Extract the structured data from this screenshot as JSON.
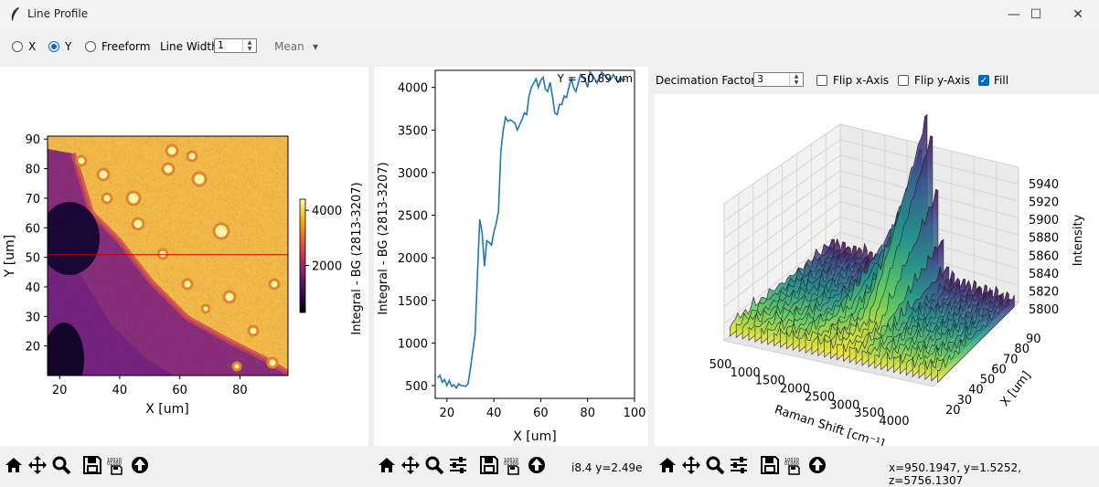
{
  "window": {
    "title": "Line Profile",
    "minimize": "—",
    "maximize": "☐",
    "close": "✕"
  },
  "toolbar": {
    "radios": [
      {
        "label": "X",
        "selected": false
      },
      {
        "label": "Y",
        "selected": true
      },
      {
        "label": "Freeform",
        "selected": false
      }
    ],
    "line_width_label": "Line Width",
    "line_width_value": "1",
    "mode_value": "Mean",
    "mode_arrow": "▾"
  },
  "panel3_controls": {
    "decimation_label": "Decimation Factor",
    "decimation_value": "3",
    "flip_x": {
      "label": "Flip x-Axis",
      "checked": false
    },
    "flip_y": {
      "label": "Flip y-Axis",
      "checked": false
    },
    "fill": {
      "label": "Fill",
      "checked": true
    }
  },
  "status": {
    "panel2_coords": "i8.4 y=2.49e",
    "panel3_coords": "x=950.1947, y=1.5252, z=5756.1307"
  },
  "chart_data": [
    {
      "type": "heatmap",
      "xlabel": "X [um]",
      "ylabel": "Y [um]",
      "xticks": [
        "20",
        "40",
        "60",
        "80"
      ],
      "yticks": [
        "20",
        "30",
        "40",
        "50",
        "60",
        "70",
        "80",
        "90"
      ],
      "xlim": [
        16,
        96
      ],
      "ylim": [
        10,
        91
      ],
      "colorbar_label": "Integral - BG (2813-3207)",
      "colorbar_ticks": [
        "2000",
        "4000"
      ],
      "colorbar_range": [
        300,
        4400
      ],
      "line_y": 50.89
    },
    {
      "type": "line",
      "title": "Y = 50.89 um",
      "xlabel": "X [um]",
      "ylabel": "Integral - BG (2813-3207)",
      "xticks": [
        "20",
        "40",
        "60",
        "80",
        "100"
      ],
      "yticks": [
        "500",
        "1000",
        "1500",
        "2000",
        "2500",
        "3000",
        "3500",
        "4000"
      ],
      "xlim": [
        15,
        100
      ],
      "ylim": [
        350,
        4200
      ],
      "series": [
        {
          "color": "#1f77b4",
          "x": [
            16,
            17,
            18,
            19,
            20,
            21,
            22,
            23,
            24,
            25,
            26,
            27,
            28,
            29,
            30,
            31,
            32,
            33,
            34,
            35,
            36,
            37,
            38,
            39,
            40,
            41,
            42,
            43,
            44,
            45,
            46,
            47,
            48,
            49,
            50,
            51,
            52,
            53,
            54,
            55,
            56,
            57,
            58,
            59,
            60,
            61,
            62,
            63,
            64,
            65,
            66,
            67,
            68,
            69,
            70,
            71,
            72,
            73,
            74,
            75,
            76,
            77,
            78,
            79,
            80,
            81,
            82,
            83,
            84,
            85,
            86,
            87,
            88,
            89,
            90,
            91,
            92,
            93,
            94,
            95,
            96
          ],
          "y": [
            590,
            620,
            540,
            570,
            500,
            560,
            490,
            510,
            470,
            520,
            500,
            500,
            490,
            520,
            700,
            900,
            1100,
            1800,
            2450,
            2300,
            1900,
            2200,
            2180,
            2150,
            2300,
            2400,
            2550,
            3250,
            3500,
            3650,
            3600,
            3620,
            3600,
            3580,
            3500,
            3560,
            3620,
            3700,
            3680,
            3900,
            4000,
            4050,
            4100,
            4000,
            4080,
            4120,
            3980,
            3950,
            4060,
            3900,
            3700,
            3680,
            3800,
            3800,
            3900,
            3880,
            4000,
            4100,
            4000,
            3950,
            4050,
            4150,
            4120,
            4080,
            4000,
            4180,
            4150,
            4100,
            4050,
            4120,
            4180,
            4150,
            4120,
            4080,
            4100,
            4150,
            4100,
            4060,
            4120,
            4080,
            4100
          ]
        }
      ]
    },
    {
      "type": "surface",
      "xlabel": "Raman Shift [cm⁻¹]",
      "ylabel": "X [um]",
      "zlabel": "Intensity",
      "xticks": [
        "500",
        "1000",
        "1500",
        "2000",
        "2500",
        "3000",
        "3500",
        "4000"
      ],
      "yticks": [
        "20",
        "30",
        "40",
        "50",
        "60",
        "70",
        "80",
        "90"
      ],
      "zticks": [
        "5800",
        "5820",
        "5840",
        "5860",
        "5880",
        "5900",
        "5920",
        "5940"
      ]
    }
  ]
}
